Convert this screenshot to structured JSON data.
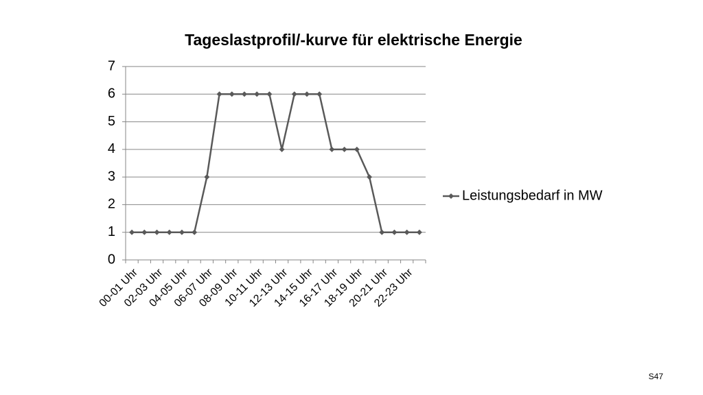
{
  "chart_data": {
    "type": "line",
    "title": "Tageslastprofil/-kurve für elektrische Energie",
    "categories": [
      "00-01 Uhr",
      null,
      "02-03 Uhr",
      null,
      "04-05 Uhr",
      null,
      "06-07 Uhr",
      null,
      "08-09 Uhr",
      null,
      "10-11 Uhr",
      null,
      "12-13 Uhr",
      null,
      "14-15 Uhr",
      null,
      "16-17 Uhr",
      null,
      "18-19 Uhr",
      null,
      "20-21 Uhr",
      null,
      "22-23 Uhr",
      null
    ],
    "series": [
      {
        "name": "Leistungsbedarf in MW",
        "color": "#595959",
        "values": [
          1,
          1,
          1,
          1,
          1,
          1,
          3,
          6,
          6,
          6,
          6,
          6,
          4,
          6,
          6,
          6,
          4,
          4,
          4,
          3,
          1,
          1,
          1,
          1
        ]
      }
    ],
    "ylim": [
      0,
      7
    ],
    "yticks": [
      0,
      1,
      2,
      3,
      4,
      5,
      6,
      7
    ],
    "grid": true,
    "legend": "right"
  },
  "footer": "S47"
}
